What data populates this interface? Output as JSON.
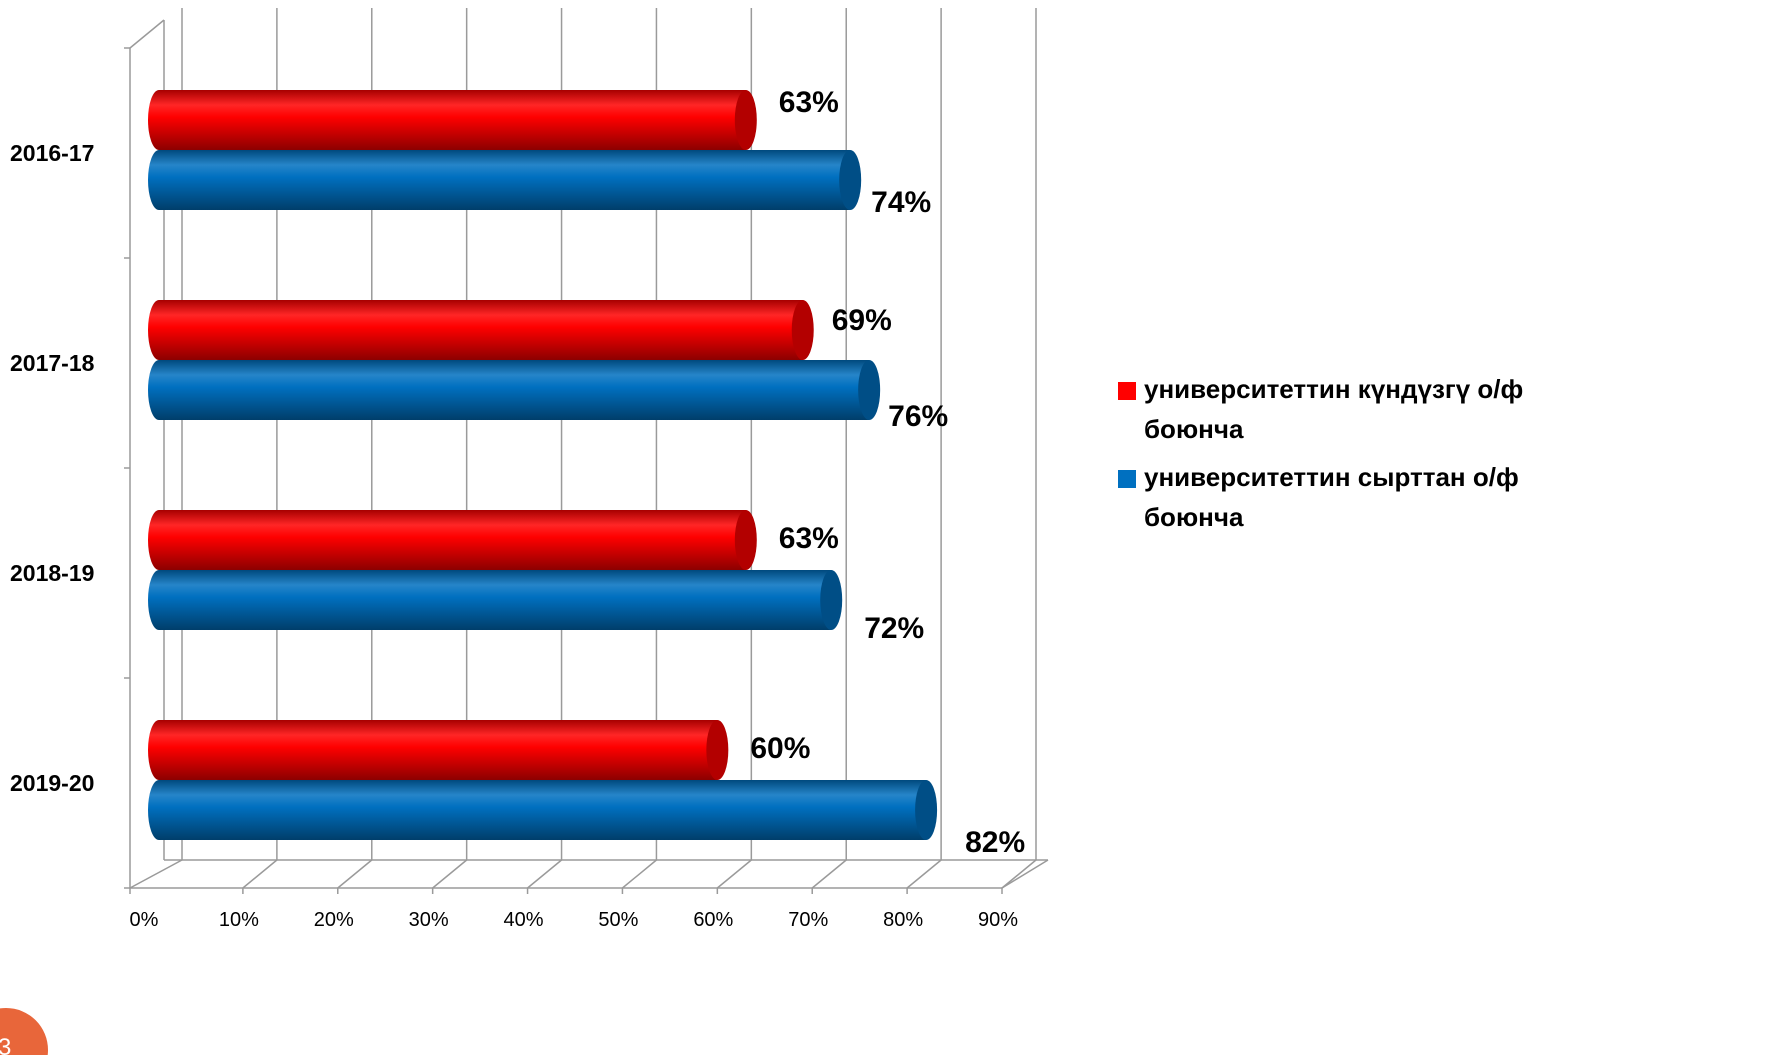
{
  "page": {
    "slide_number": "3"
  },
  "chart_data": {
    "type": "bar",
    "orientation": "horizontal",
    "style": "3d-cylinder",
    "categories": [
      "2016-17",
      "2017-18",
      "2018-19",
      "2019-20"
    ],
    "series": [
      {
        "name": "университеттин күндүзгү о/ф боюнча",
        "legend_lines": [
          "университеттин күндүзгү о/ф",
          "боюнча"
        ],
        "color": "#ff0000",
        "values": [
          63,
          69,
          63,
          60
        ],
        "labels": [
          "63%",
          "69%",
          "63%",
          "60%"
        ]
      },
      {
        "name": "университеттин сырттан о/ф боюнча",
        "legend_lines": [
          "университеттин сырттан о/ф",
          "боюнча"
        ],
        "color": "#0070c0",
        "values": [
          74,
          76,
          72,
          82
        ],
        "labels": [
          "74%",
          "76%",
          "72%",
          "82%"
        ]
      }
    ],
    "x_ticks": [
      "0%",
      "10%",
      "20%",
      "30%",
      "40%",
      "50%",
      "60%",
      "70%",
      "80%",
      "90%"
    ],
    "xlim": [
      0,
      90
    ],
    "title": "",
    "xlabel": "",
    "ylabel": "",
    "grid": true,
    "legend_position": "right"
  }
}
